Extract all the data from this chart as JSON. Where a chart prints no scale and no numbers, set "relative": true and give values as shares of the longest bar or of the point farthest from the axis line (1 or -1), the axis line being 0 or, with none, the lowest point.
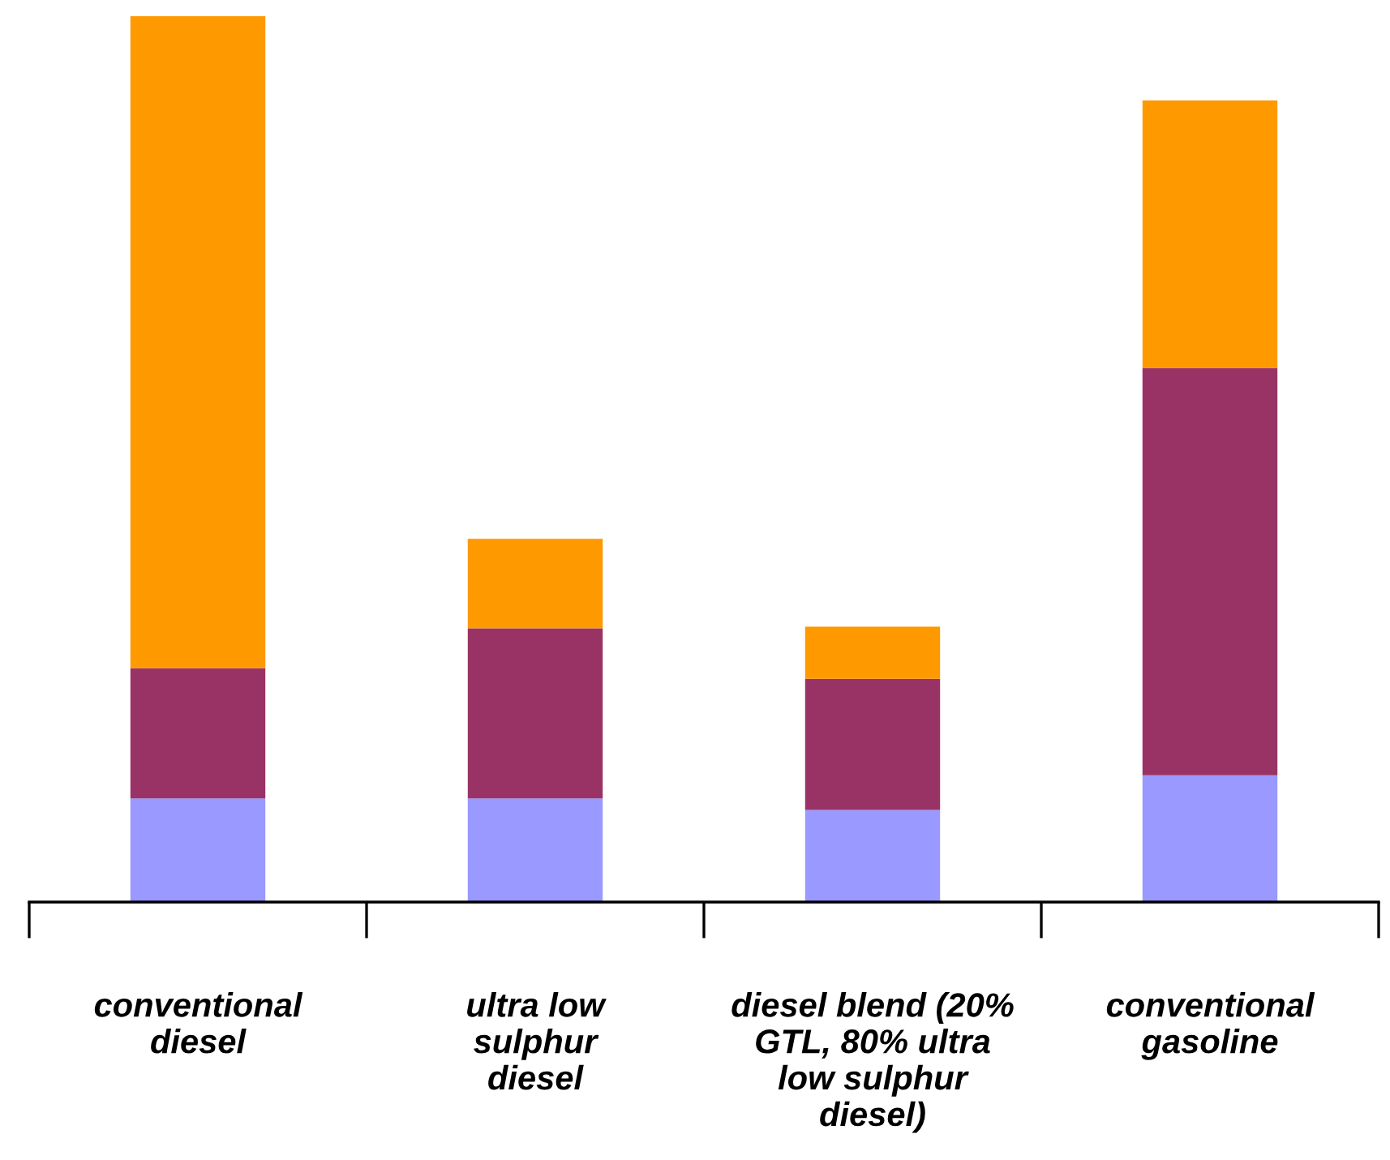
{
  "chart_data": {
    "type": "bar",
    "stacked": true,
    "relative": true,
    "categories": [
      "conventional\ndiesel",
      "ultra low\nsulphur\ndiesel",
      "diesel blend (20%\nGTL, 80% ultra\nlow sulphur\ndiesel)",
      "conventional\ngasoline"
    ],
    "series": [
      {
        "color": "#9999ff",
        "values": [
          0.117,
          0.117,
          0.104,
          0.143
        ]
      },
      {
        "color": "#993366",
        "values": [
          0.147,
          0.192,
          0.148,
          0.46
        ]
      },
      {
        "color": "#ff9900",
        "values": [
          0.736,
          0.101,
          0.059,
          0.302
        ]
      }
    ],
    "grid": false,
    "legend": false
  }
}
